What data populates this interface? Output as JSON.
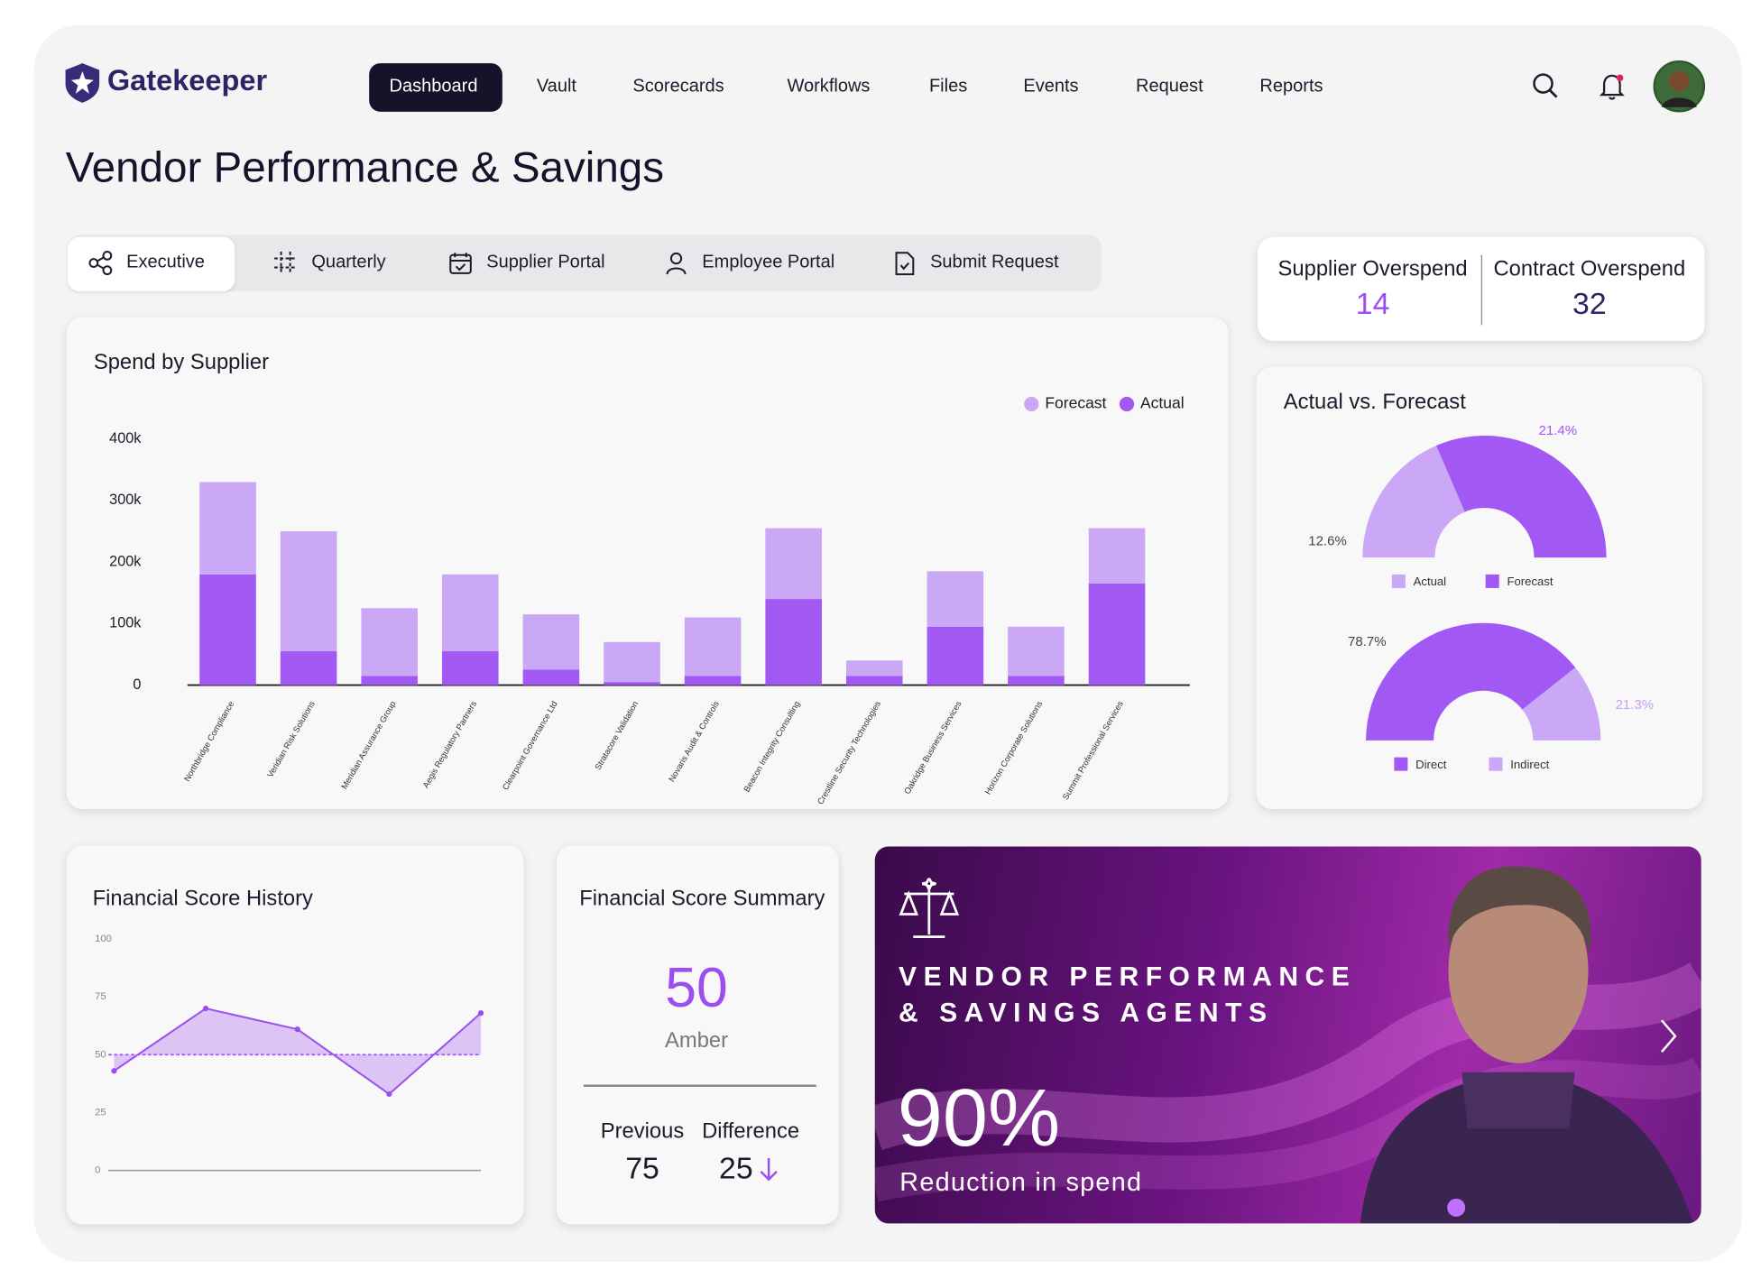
{
  "header": {
    "logo": "Gatekeeper",
    "nav": [
      "Dashboard",
      "Vault",
      "Scorecards",
      "Workflows",
      "Files",
      "Events",
      "Request",
      "Reports"
    ]
  },
  "page_title": "Vendor Performance & Savings",
  "tabs": [
    "Executive",
    "Quarterly",
    "Supplier Portal",
    "Employee Portal",
    "Submit Request"
  ],
  "kpis": [
    {
      "label": "Supplier Overspend",
      "value": 14
    },
    {
      "label": "Contract Overspend",
      "value": 32
    }
  ],
  "chart_data": [
    {
      "type": "bar",
      "stacked": true,
      "title": "Spend by Supplier",
      "legend": "top-right",
      "categories": [
        "Northbridge Compliance",
        "Veridian Risk Solutions",
        "Meridian Assurance Group",
        "Aegis Regulatory Partners",
        "Clearpoint Governance Ltd",
        "Stratacore Validation",
        "Novaris Audit & Controls",
        "Beacon Integrity Consulting",
        "Crestline Security Technologies",
        "Oakridge Business Services",
        "Horizon Corporate Solutions",
        "Summit Professional Services"
      ],
      "series": [
        {
          "name": "Actual",
          "color": "#a259f3",
          "values": [
            180000,
            55000,
            15000,
            55000,
            25000,
            5000,
            15000,
            140000,
            15000,
            95000,
            15000,
            165000
          ]
        },
        {
          "name": "Forecast",
          "color": "#caa8f6",
          "values": [
            150000,
            195000,
            110000,
            125000,
            90000,
            65000,
            95000,
            115000,
            25000,
            90000,
            80000,
            90000
          ]
        }
      ],
      "ylim": [
        0,
        400000
      ],
      "yticks": [
        0,
        {
          "value": 100000,
          "label": "100k"
        },
        {
          "value": 200000,
          "label": "200k"
        },
        {
          "value": 300000,
          "label": "300k"
        },
        {
          "value": 400000,
          "label": "400k"
        }
      ]
    },
    {
      "type": "pie",
      "title": "Actual vs. Forecast",
      "categories": [
        "Actual",
        "Forecast"
      ],
      "values": [
        12.6,
        21.4
      ],
      "value_labels": [
        "12.6%",
        "21.4%"
      ],
      "colors": [
        "#caa8f6",
        "#a259f3"
      ]
    },
    {
      "type": "pie",
      "categories": [
        "Direct",
        "Indirect"
      ],
      "values": [
        78.7,
        21.3
      ],
      "value_labels": [
        "78.7%",
        "21.3%"
      ],
      "colors": [
        "#a259f3",
        "#caa8f6"
      ]
    },
    {
      "type": "line",
      "title": "Financial Score History",
      "categories": [
        null,
        null,
        null,
        null,
        null
      ],
      "values": [
        43,
        70,
        61,
        33,
        68
      ],
      "color": "#9b4ff0",
      "reference_line": 50,
      "ylim": [
        0,
        100
      ],
      "yticks": [
        0,
        25,
        50,
        75,
        100
      ]
    }
  ],
  "score_summary": {
    "title": "Financial Score Summary",
    "score": 50,
    "rating": "Amber",
    "previous_label": "Previous",
    "previous": 75,
    "difference_label": "Difference",
    "difference": 25
  },
  "banner": {
    "headline_1": "VENDOR PERFORMANCE",
    "headline_2": "& SAVINGS AGENTS",
    "stat": "90%",
    "stat_label": "Reduction in spend"
  }
}
